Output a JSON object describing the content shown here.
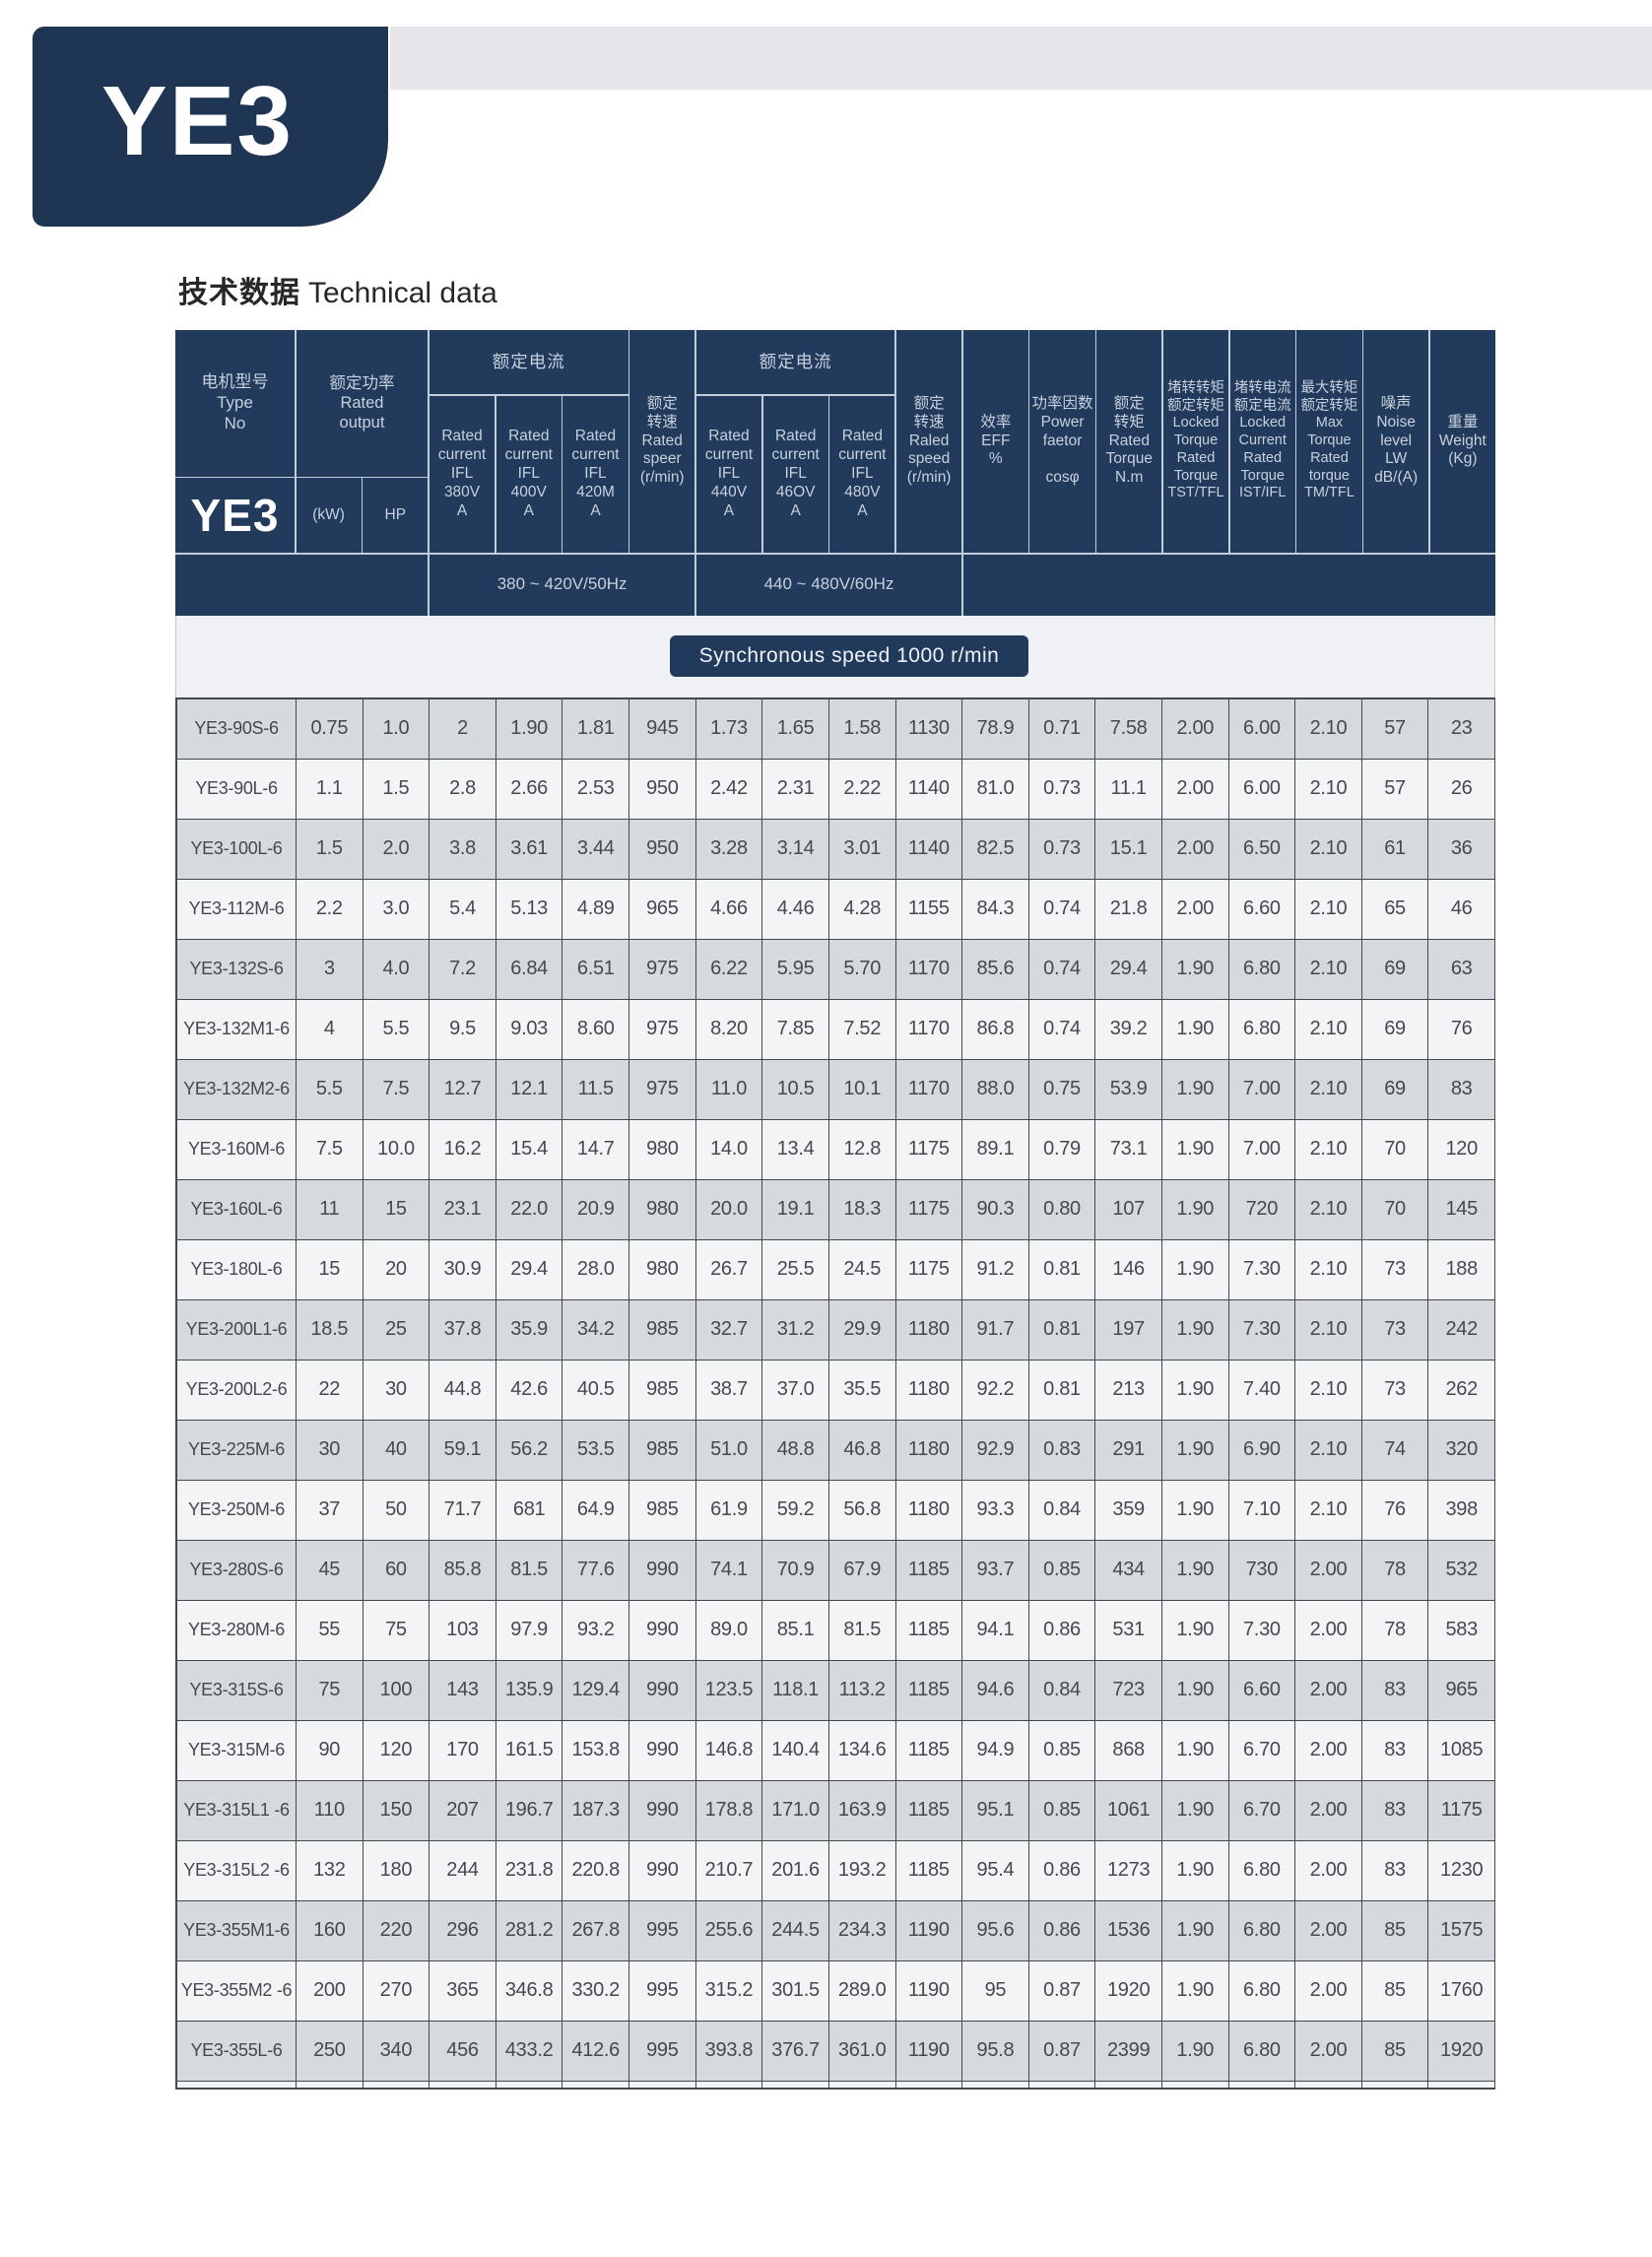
{
  "logo_text": "YE3",
  "title": {
    "zh": "技术数据",
    "en": "Technical data"
  },
  "banner": "Synchronous speed 1000 r/min",
  "colors": {
    "navy": "#223a5b",
    "logo_navy": "#1e3553",
    "topbar_gray": "#e4e6ea",
    "row_gray": "#d6d9dd",
    "row_light": "#f3f4f6",
    "grid_line": "#43484f"
  },
  "header": {
    "type": "电机型号\nType\nNo",
    "brand": "YE3",
    "output": "额定功率\nRated\noutput",
    "kw": "(kW)",
    "hp": "HP",
    "current50_label": "额定电流",
    "cur380": "Rated\ncurrent\nIFL\n380V\nA",
    "cur400": "Rated\ncurrent\nIFL\n400V\nA",
    "cur420": "Rated\ncurrent\nIFL\n420M\nA",
    "speed50": "额定\n转速\nRated\nspeer\n(r/min)",
    "current60_label": "额定电流",
    "cur440": "Rated\ncurrent\nIFL\n440V\nA",
    "cur460": "Rated\ncurrent\nIFL\n46OV\nA",
    "cur480": "Rated\ncurrent\nIFL\n480V\nA",
    "speed60": "额定\n转速\nRaled\nspeed\n(r/min)",
    "eff": "效率\nEFF\n%",
    "pf": "功率因数\nPower\nfaetor\n\ncosφ",
    "torque": "额定\n转矩\nRated\nTorque\nN.m",
    "tst": "堵转转矩\n额定转矩\nLocked\nTorque\nRated\nTorque\nTST/TFL",
    "ist": "堵转电流\n额定电流\nLocked\nCurrent\nRated\nTorque\nIST/IFL",
    "tm": "最大转矩\n额定转矩\nMax\nTorque\nRated\ntorque\nTM/TFL",
    "noise": "噪声\nNoise\nlevel\nLW\ndB/(A)",
    "weight": "重量\nWeight\n(Kg)",
    "band50": "380 ~ 420V/50Hz",
    "band60": "440 ~ 480V/60Hz"
  },
  "rows": [
    [
      "YE3-90S-6",
      "0.75",
      "1.0",
      "2",
      "1.90",
      "1.81",
      "945",
      "1.73",
      "1.65",
      "1.58",
      "1130",
      "78.9",
      "0.71",
      "7.58",
      "2.00",
      "6.00",
      "2.10",
      "57",
      "23"
    ],
    [
      "YE3-90L-6",
      "1.1",
      "1.5",
      "2.8",
      "2.66",
      "2.53",
      "950",
      "2.42",
      "2.31",
      "2.22",
      "1140",
      "81.0",
      "0.73",
      "11.1",
      "2.00",
      "6.00",
      "2.10",
      "57",
      "26"
    ],
    [
      "YE3-100L-6",
      "1.5",
      "2.0",
      "3.8",
      "3.61",
      "3.44",
      "950",
      "3.28",
      "3.14",
      "3.01",
      "1140",
      "82.5",
      "0.73",
      "15.1",
      "2.00",
      "6.50",
      "2.10",
      "61",
      "36"
    ],
    [
      "YE3-112M-6",
      "2.2",
      "3.0",
      "5.4",
      "5.13",
      "4.89",
      "965",
      "4.66",
      "4.46",
      "4.28",
      "1155",
      "84.3",
      "0.74",
      "21.8",
      "2.00",
      "6.60",
      "2.10",
      "65",
      "46"
    ],
    [
      "YE3-132S-6",
      "3",
      "4.0",
      "7.2",
      "6.84",
      "6.51",
      "975",
      "6.22",
      "5.95",
      "5.70",
      "1170",
      "85.6",
      "0.74",
      "29.4",
      "1.90",
      "6.80",
      "2.10",
      "69",
      "63"
    ],
    [
      "YE3-132M1-6",
      "4",
      "5.5",
      "9.5",
      "9.03",
      "8.60",
      "975",
      "8.20",
      "7.85",
      "7.52",
      "1170",
      "86.8",
      "0.74",
      "39.2",
      "1.90",
      "6.80",
      "2.10",
      "69",
      "76"
    ],
    [
      "YE3-132M2-6",
      "5.5",
      "7.5",
      "12.7",
      "12.1",
      "11.5",
      "975",
      "11.0",
      "10.5",
      "10.1",
      "1170",
      "88.0",
      "0.75",
      "53.9",
      "1.90",
      "7.00",
      "2.10",
      "69",
      "83"
    ],
    [
      "YE3-160M-6",
      "7.5",
      "10.0",
      "16.2",
      "15.4",
      "14.7",
      "980",
      "14.0",
      "13.4",
      "12.8",
      "1175",
      "89.1",
      "0.79",
      "73.1",
      "1.90",
      "7.00",
      "2.10",
      "70",
      "120"
    ],
    [
      "YE3-160L-6",
      "11",
      "15",
      "23.1",
      "22.0",
      "20.9",
      "980",
      "20.0",
      "19.1",
      "18.3",
      "1175",
      "90.3",
      "0.80",
      "107",
      "1.90",
      "720",
      "2.10",
      "70",
      "145"
    ],
    [
      "YE3-180L-6",
      "15",
      "20",
      "30.9",
      "29.4",
      "28.0",
      "980",
      "26.7",
      "25.5",
      "24.5",
      "1175",
      "91.2",
      "0.81",
      "146",
      "1.90",
      "7.30",
      "2.10",
      "73",
      "188"
    ],
    [
      "YE3-200L1-6",
      "18.5",
      "25",
      "37.8",
      "35.9",
      "34.2",
      "985",
      "32.7",
      "31.2",
      "29.9",
      "1180",
      "91.7",
      "0.81",
      "197",
      "1.90",
      "7.30",
      "2.10",
      "73",
      "242"
    ],
    [
      "YE3-200L2-6",
      "22",
      "30",
      "44.8",
      "42.6",
      "40.5",
      "985",
      "38.7",
      "37.0",
      "35.5",
      "1180",
      "92.2",
      "0.81",
      "213",
      "1.90",
      "7.40",
      "2.10",
      "73",
      "262"
    ],
    [
      "YE3-225M-6",
      "30",
      "40",
      "59.1",
      "56.2",
      "53.5",
      "985",
      "51.0",
      "48.8",
      "46.8",
      "1180",
      "92.9",
      "0.83",
      "291",
      "1.90",
      "6.90",
      "2.10",
      "74",
      "320"
    ],
    [
      "YE3-250M-6",
      "37",
      "50",
      "71.7",
      "681",
      "64.9",
      "985",
      "61.9",
      "59.2",
      "56.8",
      "1180",
      "93.3",
      "0.84",
      "359",
      "1.90",
      "7.10",
      "2.10",
      "76",
      "398"
    ],
    [
      "YE3-280S-6",
      "45",
      "60",
      "85.8",
      "81.5",
      "77.6",
      "990",
      "74.1",
      "70.9",
      "67.9",
      "1185",
      "93.7",
      "0.85",
      "434",
      "1.90",
      "730",
      "2.00",
      "78",
      "532"
    ],
    [
      "YE3-280M-6",
      "55",
      "75",
      "103",
      "97.9",
      "93.2",
      "990",
      "89.0",
      "85.1",
      "81.5",
      "1185",
      "94.1",
      "0.86",
      "531",
      "1.90",
      "7.30",
      "2.00",
      "78",
      "583"
    ],
    [
      "YE3-315S-6",
      "75",
      "100",
      "143",
      "135.9",
      "129.4",
      "990",
      "123.5",
      "118.1",
      "113.2",
      "1185",
      "94.6",
      "0.84",
      "723",
      "1.90",
      "6.60",
      "2.00",
      "83",
      "965"
    ],
    [
      "YE3-315M-6",
      "90",
      "120",
      "170",
      "161.5",
      "153.8",
      "990",
      "146.8",
      "140.4",
      "134.6",
      "1185",
      "94.9",
      "0.85",
      "868",
      "1.90",
      "6.70",
      "2.00",
      "83",
      "1085"
    ],
    [
      "YE3-315L1 -6",
      "110",
      "150",
      "207",
      "196.7",
      "187.3",
      "990",
      "178.8",
      "171.0",
      "163.9",
      "1185",
      "95.1",
      "0.85",
      "1061",
      "1.90",
      "6.70",
      "2.00",
      "83",
      "1175"
    ],
    [
      "YE3-315L2 -6",
      "132",
      "180",
      "244",
      "231.8",
      "220.8",
      "990",
      "210.7",
      "201.6",
      "193.2",
      "1185",
      "95.4",
      "0.86",
      "1273",
      "1.90",
      "6.80",
      "2.00",
      "83",
      "1230"
    ],
    [
      "YE3-355M1-6",
      "160",
      "220",
      "296",
      "281.2",
      "267.8",
      "995",
      "255.6",
      "244.5",
      "234.3",
      "1190",
      "95.6",
      "0.86",
      "1536",
      "1.90",
      "6.80",
      "2.00",
      "85",
      "1575"
    ],
    [
      "YE3-355M2 -6",
      "200",
      "270",
      "365",
      "346.8",
      "330.2",
      "995",
      "315.2",
      "301.5",
      "289.0",
      "1190",
      "95",
      "0.87",
      "1920",
      "1.90",
      "6.80",
      "2.00",
      "85",
      "1760"
    ],
    [
      "YE3-355L-6",
      "250",
      "340",
      "456",
      "433.2",
      "412.6",
      "995",
      "393.8",
      "376.7",
      "361.0",
      "1190",
      "95.8",
      "0.87",
      "2399",
      "1.90",
      "6.80",
      "2.00",
      "85",
      "1920"
    ]
  ]
}
